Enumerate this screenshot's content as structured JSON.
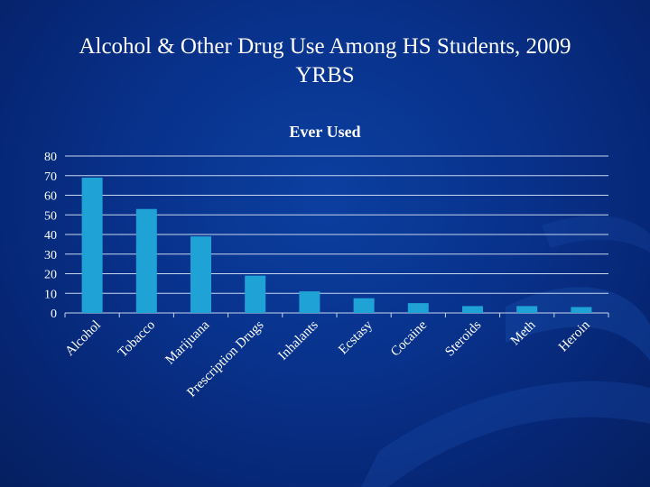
{
  "slide": {
    "title_line1": "Alcohol & Other Drug Use Among HS Students, 2009",
    "title_line2": "YRBS"
  },
  "colors": {
    "background": "#08318a",
    "bar": "#1fa3d6",
    "gridline": "#c8d6ee",
    "text": "#ffffff"
  },
  "chart_data": {
    "type": "bar",
    "title": "Ever Used",
    "xlabel": "",
    "ylabel": "",
    "ylim": [
      0,
      80
    ],
    "yticks": [
      0,
      10,
      20,
      30,
      40,
      50,
      60,
      70,
      80
    ],
    "grid": true,
    "categories": [
      "Alcohol",
      "Tobacco",
      "Marijuana",
      "Prescription Drugs",
      "Inhalants",
      "Ecstasy",
      "Cocaine",
      "Steroids",
      "Meth",
      "Heroin"
    ],
    "values": [
      69,
      53,
      39,
      19,
      11,
      7.5,
      5,
      3.5,
      3.5,
      3
    ]
  }
}
